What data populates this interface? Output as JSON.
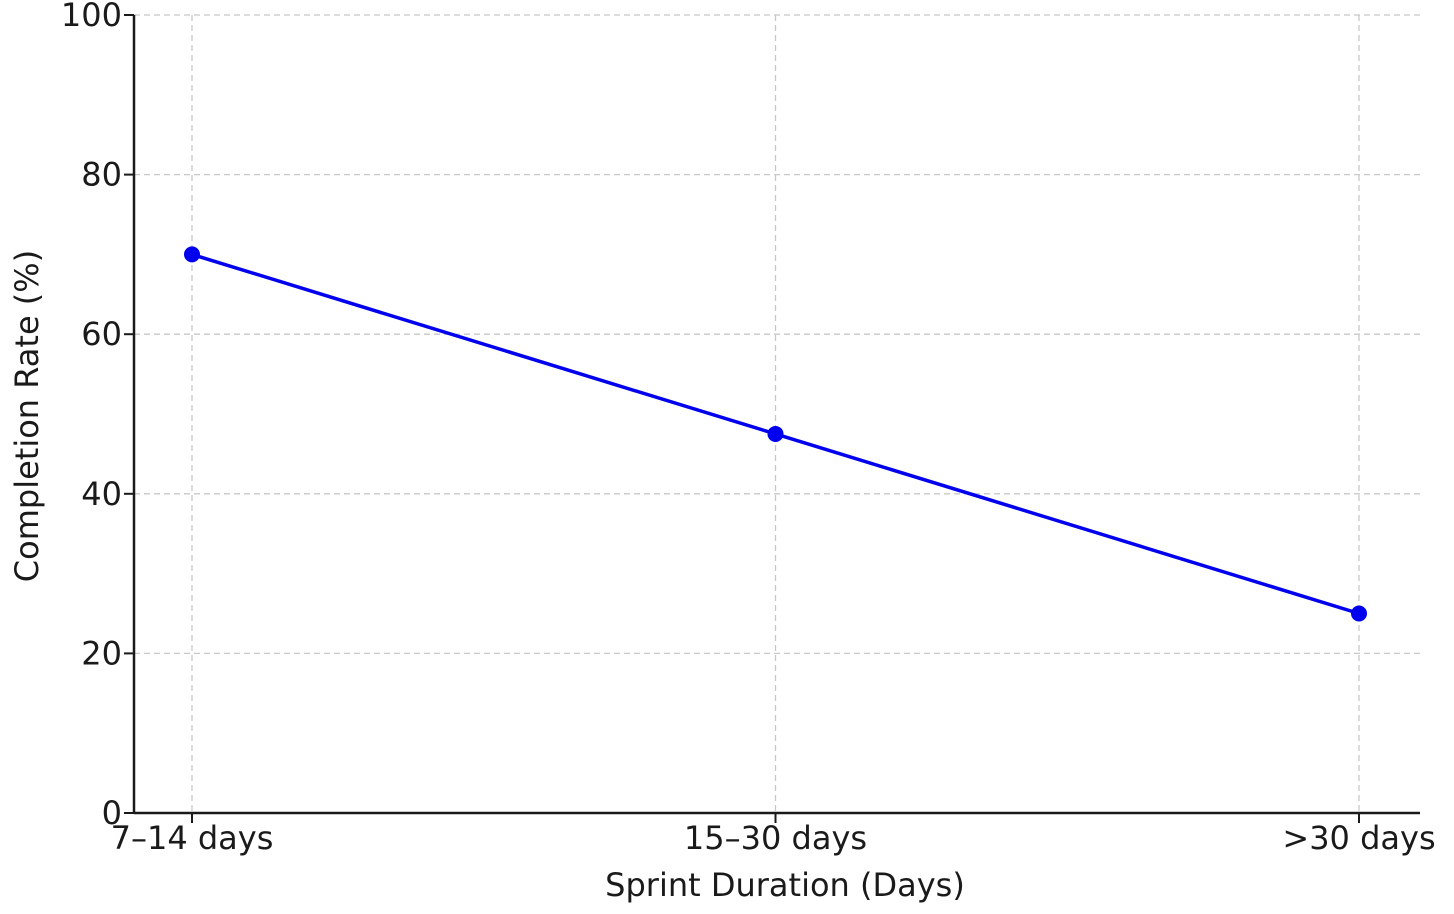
{
  "chart_data": {
    "type": "line",
    "categories": [
      "7–14 days",
      "15–30 days",
      ">30 days"
    ],
    "series": [
      {
        "values": [
          70,
          47.5,
          25
        ],
        "color": "#0000ee"
      }
    ],
    "xlabel": "Sprint Duration (Days)",
    "ylabel": "Completion Rate (%)",
    "ylim": [
      0,
      100
    ],
    "yticks": [
      0,
      20,
      40,
      60,
      80,
      100
    ],
    "grid": true,
    "markers": true
  }
}
